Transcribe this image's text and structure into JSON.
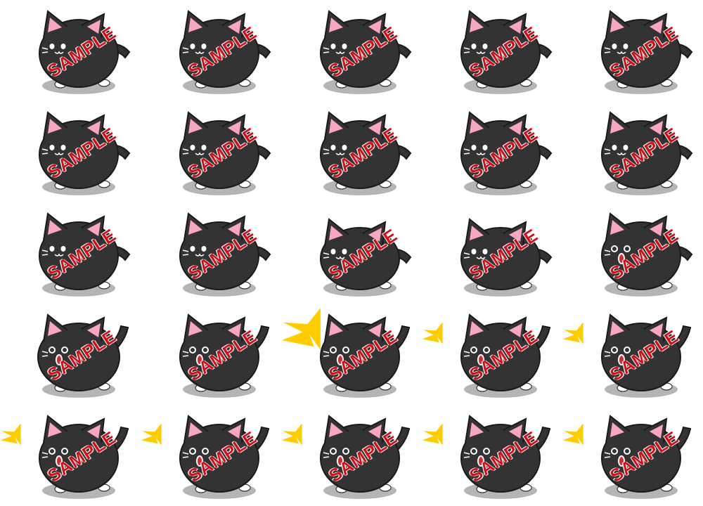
{
  "sprite_sheet": {
    "watermark_text": "SAMPLE",
    "colors": {
      "background": "#ffffff",
      "body": "#333333",
      "outline": "#1a1a1a",
      "ear_inner": "#f7a8c0",
      "eye": "#ffffff",
      "shadow": "#b5b5b5",
      "paw": "#ffffff",
      "mouth": "#d92a2a",
      "shout_burst": "#ffcc00",
      "watermark": "#d0111b"
    },
    "frames": [
      {
        "pose": "idle",
        "shout": "none"
      },
      {
        "pose": "idle",
        "shout": "none"
      },
      {
        "pose": "idle",
        "shout": "none"
      },
      {
        "pose": "idle",
        "shout": "none"
      },
      {
        "pose": "idle",
        "shout": "none"
      },
      {
        "pose": "idle",
        "shout": "none"
      },
      {
        "pose": "idle",
        "shout": "none"
      },
      {
        "pose": "idle",
        "shout": "none"
      },
      {
        "pose": "idle",
        "shout": "none"
      },
      {
        "pose": "idle",
        "shout": "none"
      },
      {
        "pose": "idle",
        "shout": "none"
      },
      {
        "pose": "idle",
        "shout": "none"
      },
      {
        "pose": "crouch",
        "shout": "none"
      },
      {
        "pose": "crouch",
        "shout": "none"
      },
      {
        "pose": "surprised",
        "shout": "none"
      },
      {
        "pose": "meow-big",
        "shout": "none"
      },
      {
        "pose": "meow",
        "shout": "none"
      },
      {
        "pose": "meow",
        "shout": "large"
      },
      {
        "pose": "meow",
        "shout": "small"
      },
      {
        "pose": "meow",
        "shout": "small"
      },
      {
        "pose": "meow",
        "shout": "small"
      },
      {
        "pose": "meow",
        "shout": "small"
      },
      {
        "pose": "meow",
        "shout": "small"
      },
      {
        "pose": "meow",
        "shout": "small"
      },
      {
        "pose": "meow",
        "shout": "small"
      }
    ]
  }
}
